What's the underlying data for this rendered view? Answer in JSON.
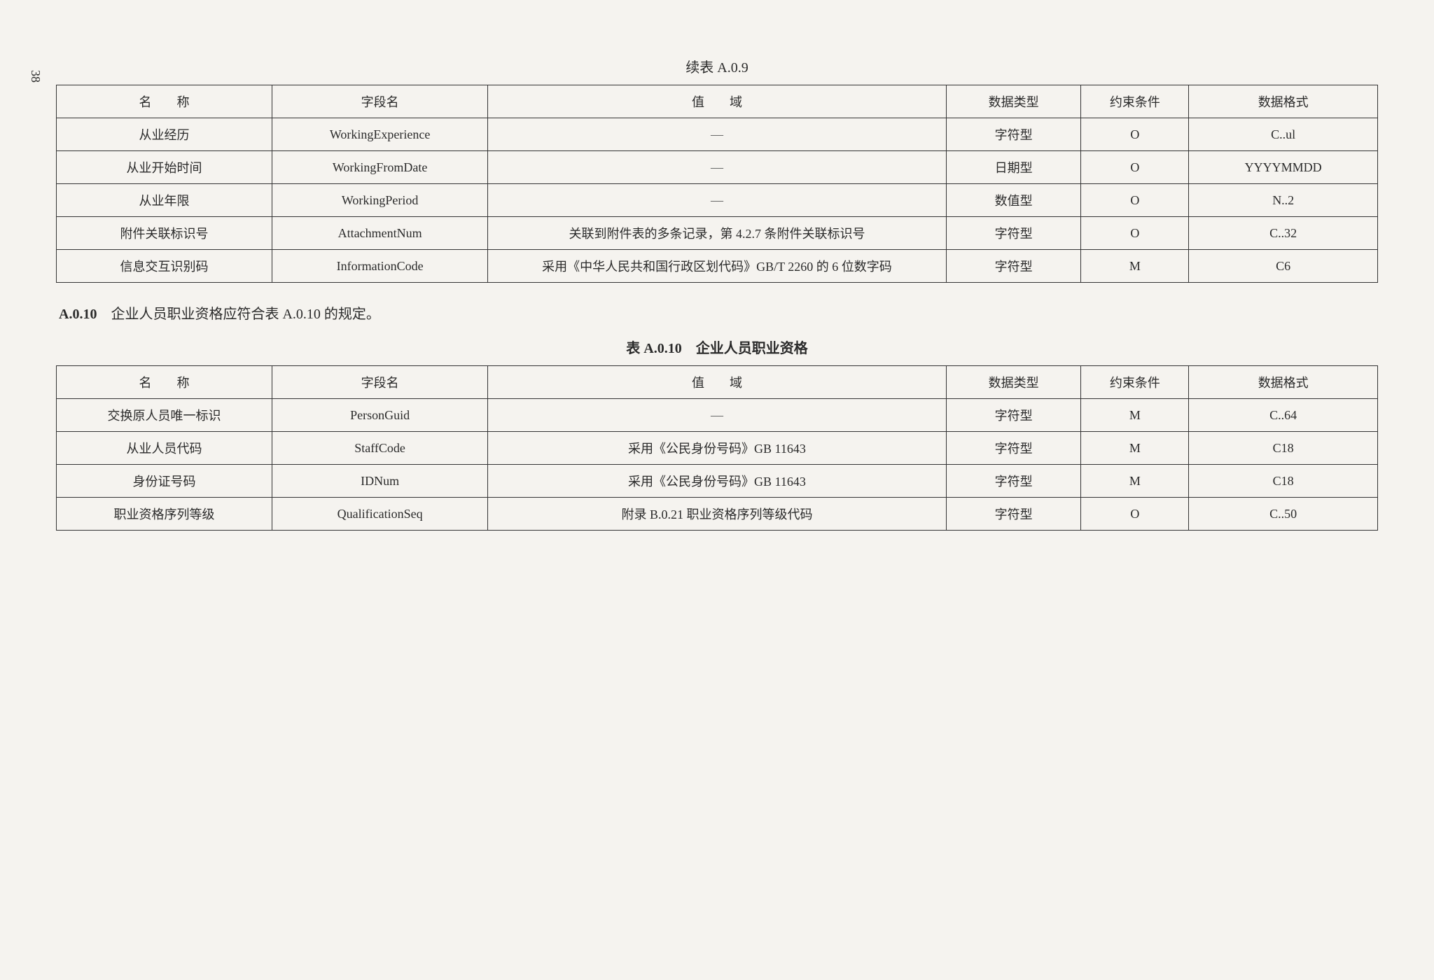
{
  "page_number": "38",
  "table1": {
    "caption": "续表 A.0.9",
    "headers": {
      "name": "名　　称",
      "field": "字段名",
      "domain": "值　　域",
      "type": "数据类型",
      "constraint": "约束条件",
      "format": "数据格式"
    },
    "rows": [
      {
        "name": "从业经历",
        "field": "WorkingExperience",
        "domain": "—",
        "type": "字符型",
        "constraint": "O",
        "format": "C..ul"
      },
      {
        "name": "从业开始时间",
        "field": "WorkingFromDate",
        "domain": "—",
        "type": "日期型",
        "constraint": "O",
        "format": "YYYYMMDD"
      },
      {
        "name": "从业年限",
        "field": "WorkingPeriod",
        "domain": "—",
        "type": "数值型",
        "constraint": "O",
        "format": "N..2"
      },
      {
        "name": "附件关联标识号",
        "field": "AttachmentNum",
        "domain": "关联到附件表的多条记录，第 4.2.7 条附件关联标识号",
        "type": "字符型",
        "constraint": "O",
        "format": "C..32"
      },
      {
        "name": "信息交互识别码",
        "field": "InformationCode",
        "domain": "采用《中华人民共和国行政区划代码》GB/T 2260 的 6 位数字码",
        "type": "字符型",
        "constraint": "M",
        "format": "C6"
      }
    ]
  },
  "section": {
    "num": "A.0.10",
    "text": "　企业人员职业资格应符合表 A.0.10 的规定。"
  },
  "table2": {
    "caption_num": "表 A.0.10",
    "caption_text": "　企业人员职业资格",
    "headers": {
      "name": "名　　称",
      "field": "字段名",
      "domain": "值　　域",
      "type": "数据类型",
      "constraint": "约束条件",
      "format": "数据格式"
    },
    "rows": [
      {
        "name": "交换原人员唯一标识",
        "field": "PersonGuid",
        "domain": "—",
        "type": "字符型",
        "constraint": "M",
        "format": "C..64"
      },
      {
        "name": "从业人员代码",
        "field": "StaffCode",
        "domain": "采用《公民身份号码》GB 11643",
        "type": "字符型",
        "constraint": "M",
        "format": "C18"
      },
      {
        "name": "身份证号码",
        "field": "IDNum",
        "domain": "采用《公民身份号码》GB 11643",
        "type": "字符型",
        "constraint": "M",
        "format": "C18"
      },
      {
        "name": "职业资格序列等级",
        "field": "QualificationSeq",
        "domain": "附录 B.0.21 职业资格序列等级代码",
        "type": "字符型",
        "constraint": "O",
        "format": "C..50"
      }
    ]
  },
  "style": {
    "border_color": "#333333",
    "background_color": "#f5f3ef",
    "text_color": "#2a2a2a",
    "base_font_size_pt": 14,
    "caption_font_size_pt": 15,
    "font_family": "SimSun"
  }
}
